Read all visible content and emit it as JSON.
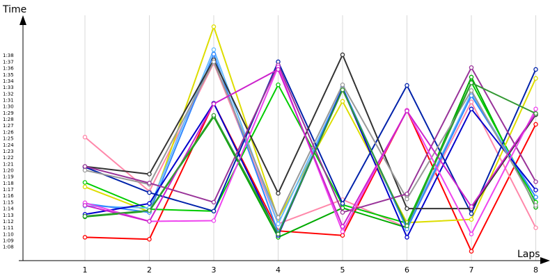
{
  "chart_data": {
    "type": "line",
    "xlabel": "Laps",
    "ylabel": "Time",
    "x": [
      1,
      2,
      3,
      4,
      5,
      6,
      7,
      8
    ],
    "x_ticks": [
      "1",
      "2",
      "3",
      "4",
      "5",
      "6",
      "7",
      "8"
    ],
    "y_ticks": [
      "1:08",
      "1:09",
      "1:10",
      "1:11",
      "1:12",
      "1:13",
      "1:14",
      "1:15",
      "1:16",
      "1:17",
      "1:18",
      "1:19",
      "1:20",
      "1:21",
      "1:22",
      "1:23",
      "1:24",
      "1:25",
      "1:26",
      "1:27",
      "1:28",
      "1:29",
      "1:30",
      "1:31",
      "1:32",
      "1:33",
      "1:34",
      "1:35",
      "1:36",
      "1:37",
      "1:38"
    ],
    "ylim_seconds": [
      66,
      100
    ],
    "grid": "vertical",
    "series": [
      {
        "color": "#ff0000",
        "values": [
          69.5,
          69.2,
          90.5,
          70.5,
          69.8,
          89.4,
          67.3,
          87.2
        ]
      },
      {
        "color": "#ff88aa",
        "values": [
          85.2,
          76.7,
          96.8,
          71.6,
          75.4,
          71.0,
          90.7,
          71.0
        ]
      },
      {
        "color": "#00aa00",
        "values": [
          72.7,
          73.6,
          88.4,
          69.5,
          74.1,
          71.0,
          94.6,
          74.2
        ]
      },
      {
        "color": "#00cc00",
        "values": [
          78.1,
          73.9,
          73.6,
          93.4,
          74.6,
          71.7,
          93.8,
          75.0
        ]
      },
      {
        "color": "#dddd00",
        "values": [
          77.4,
          73.5,
          102.5,
          72.4,
          90.8,
          71.8,
          72.3,
          94.4
        ]
      },
      {
        "color": "#66bbff",
        "values": [
          74.4,
          74.1,
          98.9,
          71.6,
          92.9,
          71.1,
          92.1,
          75.8
        ]
      },
      {
        "color": "#3388ff",
        "values": [
          74.8,
          73.4,
          98.2,
          70.2,
          93.0,
          70.8,
          91.7,
          75.8
        ]
      },
      {
        "color": "#0000cc",
        "values": [
          73.1,
          74.8,
          90.5,
          69.8,
          92.8,
          69.5,
          89.6,
          76.9
        ]
      },
      {
        "color": "#0022aa",
        "values": [
          80.5,
          76.5,
          73.6,
          97.0,
          74.8,
          93.3,
          73.2,
          95.8
        ]
      },
      {
        "color": "#333333",
        "values": [
          80.6,
          79.4,
          97.3,
          76.4,
          98.1,
          74.0,
          74.0,
          88.7
        ]
      },
      {
        "color": "#999999",
        "values": [
          80.0,
          77.8,
          97.0,
          72.6,
          93.4,
          75.5,
          92.5,
          74.5
        ]
      },
      {
        "color": "#993399",
        "values": [
          80.6,
          78.0,
          75.0,
          96.5,
          73.4,
          76.3,
          96.1,
          78.2
        ]
      },
      {
        "color": "#ee44ee",
        "values": [
          74.9,
          72.0,
          72.1,
          96.2,
          70.4,
          89.4,
          70.0,
          89.6
        ]
      },
      {
        "color": "#cc22cc",
        "values": [
          74.5,
          72.0,
          90.4,
          95.8,
          71.2,
          89.3,
          74.3,
          88.9
        ]
      },
      {
        "color": "#339933",
        "values": [
          72.8,
          73.7,
          88.6,
          70.0,
          92.6,
          71.3,
          93.7,
          88.9
        ]
      }
    ]
  }
}
